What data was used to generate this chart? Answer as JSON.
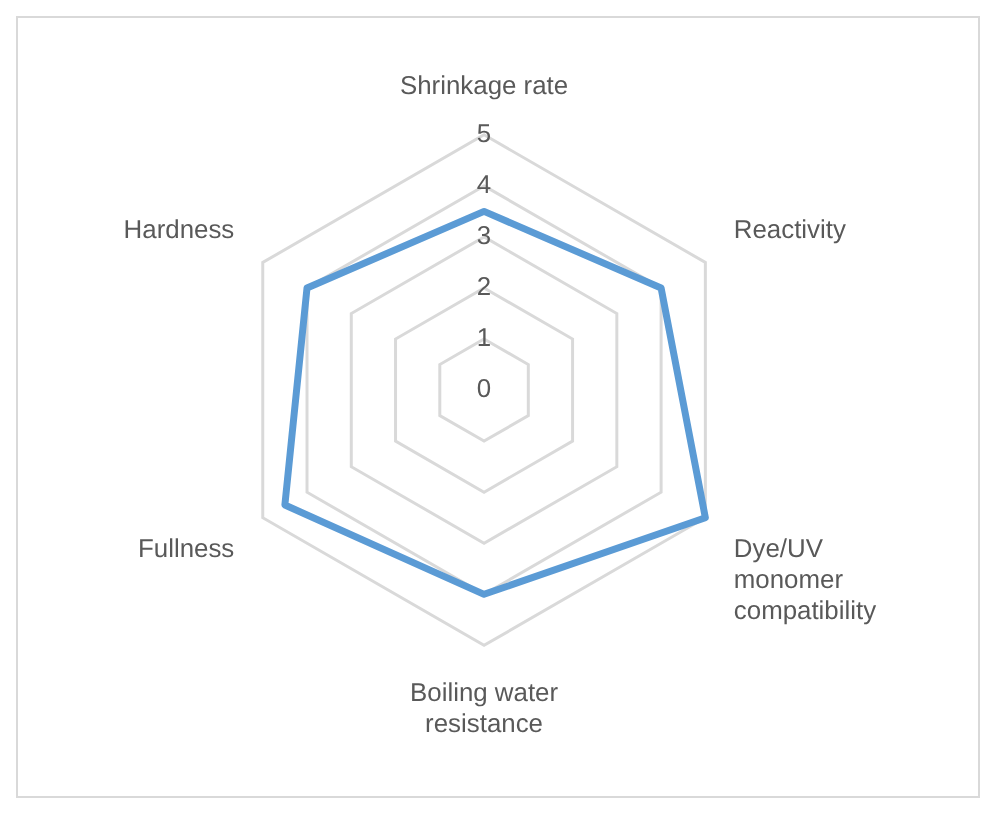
{
  "chart_data": {
    "type": "radar",
    "categories": [
      "Shrinkage rate",
      "Reactivity",
      "Dye/UV monomer compatibility",
      "Boiling water resistance",
      "Fullness",
      "Hardness"
    ],
    "series": [
      {
        "color": "#5b9bd5",
        "values": [
          3.5,
          4,
          5,
          4,
          4.5,
          4
        ]
      }
    ],
    "ylim": [
      0,
      5
    ],
    "yticks": [
      0,
      1,
      2,
      3,
      4,
      5
    ],
    "grid": true,
    "legend": false,
    "marker": "none"
  }
}
